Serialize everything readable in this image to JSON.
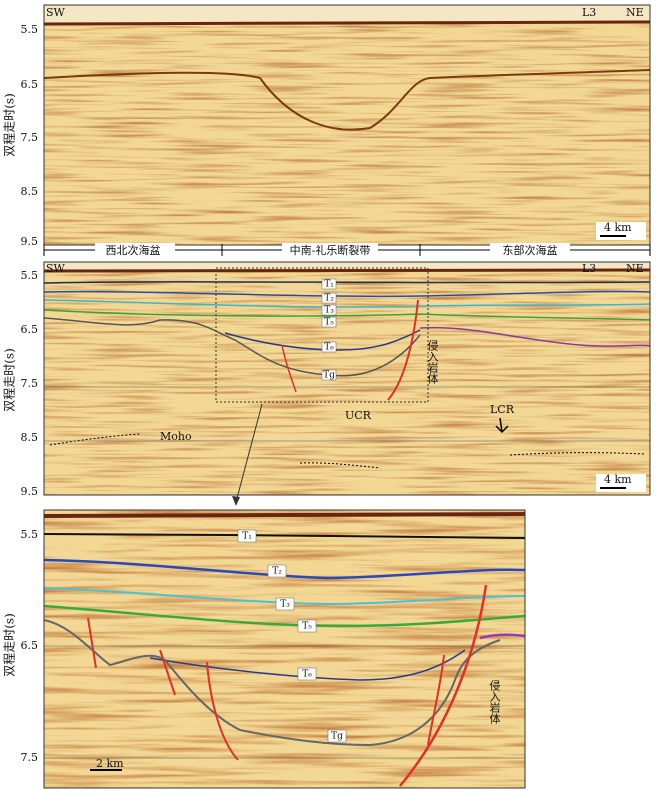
{
  "panel_top": {
    "left": "SW",
    "line": "L3",
    "right": "NE",
    "scale": "4 km",
    "y_axis_label": "双程走时(s)",
    "y_ticks": [
      "5.5",
      "6.5",
      "7.5",
      "8.5",
      "9.5"
    ]
  },
  "zones": [
    "西北次海盆",
    "中南-礼乐断裂带",
    "东部次海盆"
  ],
  "panel_middle": {
    "left": "SW",
    "line": "L3",
    "right": "NE",
    "scale": "4 km",
    "y_axis_label": "双程走时(s)",
    "y_ticks": [
      "5.5",
      "6.5",
      "7.5",
      "8.5",
      "9.5"
    ],
    "horizons": [
      "T₁",
      "T₂",
      "T₃",
      "T₅",
      "T₆",
      "Tg"
    ],
    "intrusion": "侵入岩体",
    "ucr": "UCR",
    "lcr": "LCR",
    "moho": "Moho"
  },
  "panel_bottom": {
    "y_axis_label": "双程走时(s)",
    "y_ticks": [
      "5.5",
      "6.5",
      "7.5"
    ],
    "horizons": [
      "T₁",
      "T₂",
      "T₃",
      "T₅",
      "T₆",
      "Tg"
    ],
    "intrusion": "侵入岩体",
    "scale": "2 km"
  }
}
